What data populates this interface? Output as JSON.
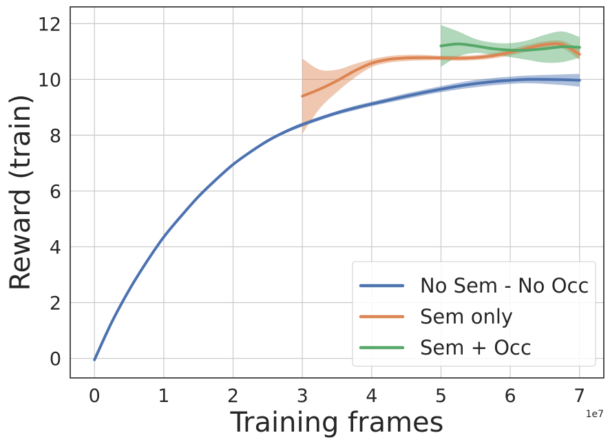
{
  "chart_data": {
    "type": "line",
    "xlabel": "Training frames",
    "ylabel": "Reward (train)",
    "x_offset_text": "1e7",
    "xlim": [
      -0.35,
      7.35
    ],
    "ylim": [
      -0.7,
      12.6
    ],
    "xticks": [
      0,
      1,
      2,
      3,
      4,
      5,
      6,
      7
    ],
    "yticks": [
      0,
      2,
      4,
      6,
      8,
      10,
      12
    ],
    "grid": true,
    "legend_position": "lower-right",
    "series": [
      {
        "name": "No Sem - No Occ",
        "color": "#4c72b0",
        "x": [
          0,
          0.25,
          0.5,
          0.75,
          1,
          1.25,
          1.5,
          1.75,
          2,
          2.25,
          2.5,
          2.75,
          3,
          3.25,
          3.5,
          3.75,
          4,
          4.25,
          4.5,
          4.75,
          5,
          5.25,
          5.5,
          5.75,
          6,
          6.25,
          6.5,
          6.75,
          7
        ],
        "y": [
          -0.05,
          1.3,
          2.45,
          3.45,
          4.35,
          5.1,
          5.8,
          6.4,
          6.95,
          7.4,
          7.8,
          8.12,
          8.38,
          8.6,
          8.8,
          8.97,
          9.12,
          9.26,
          9.4,
          9.53,
          9.65,
          9.76,
          9.85,
          9.92,
          9.97,
          10.0,
          10.0,
          9.99,
          9.97
        ],
        "upper": [
          -0.02,
          1.33,
          2.48,
          3.48,
          4.38,
          5.14,
          5.84,
          6.45,
          7.0,
          7.46,
          7.86,
          8.18,
          8.45,
          8.67,
          8.87,
          9.05,
          9.2,
          9.35,
          9.5,
          9.63,
          9.76,
          9.88,
          9.98,
          10.05,
          10.1,
          10.14,
          10.16,
          10.18,
          10.2
        ],
        "lower": [
          -0.08,
          1.27,
          2.42,
          3.42,
          4.32,
          5.06,
          5.76,
          6.35,
          6.9,
          7.34,
          7.74,
          8.06,
          8.31,
          8.53,
          8.73,
          8.89,
          9.04,
          9.17,
          9.3,
          9.43,
          9.54,
          9.64,
          9.72,
          9.79,
          9.84,
          9.86,
          9.84,
          9.8,
          9.74
        ]
      },
      {
        "name": "Sem only",
        "color": "#dd8452",
        "x": [
          3,
          3.25,
          3.5,
          3.75,
          4,
          4.25,
          4.5,
          4.75,
          5,
          5.25,
          5.5,
          5.75,
          6,
          6.25,
          6.5,
          6.75,
          7
        ],
        "y": [
          9.4,
          9.65,
          9.95,
          10.3,
          10.58,
          10.72,
          10.77,
          10.78,
          10.77,
          10.76,
          10.78,
          10.85,
          10.97,
          11.12,
          11.25,
          11.25,
          10.9
        ],
        "upper": [
          10.75,
          10.35,
          10.35,
          10.55,
          10.72,
          10.84,
          10.88,
          10.88,
          10.85,
          10.85,
          10.87,
          10.95,
          11.08,
          11.24,
          11.36,
          11.38,
          11.1
        ],
        "lower": [
          8.05,
          8.95,
          9.55,
          10.05,
          10.44,
          10.6,
          10.66,
          10.68,
          10.69,
          10.67,
          10.69,
          10.75,
          10.86,
          11.0,
          11.14,
          11.12,
          10.7
        ]
      },
      {
        "name": "Sem + Occ",
        "color": "#55a868",
        "x": [
          5,
          5.25,
          5.5,
          5.75,
          6,
          6.25,
          6.5,
          6.75,
          7
        ],
        "y": [
          11.2,
          11.27,
          11.2,
          11.1,
          11.05,
          11.05,
          11.1,
          11.17,
          11.15
        ],
        "upper": [
          11.95,
          11.72,
          11.45,
          11.32,
          11.3,
          11.4,
          11.6,
          11.72,
          11.52
        ],
        "lower": [
          10.45,
          10.82,
          10.95,
          10.88,
          10.8,
          10.7,
          10.6,
          10.62,
          10.78
        ]
      }
    ]
  }
}
